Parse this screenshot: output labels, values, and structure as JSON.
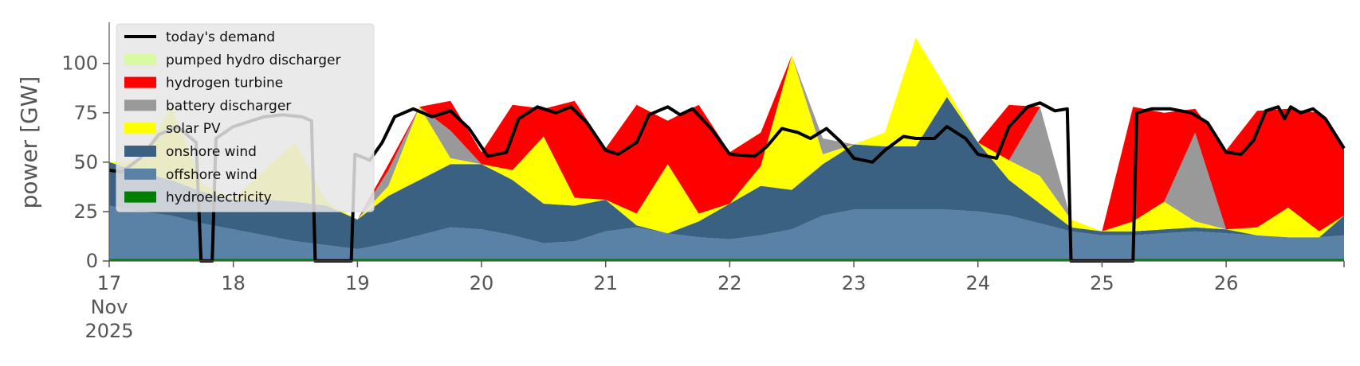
{
  "chart_data": {
    "type": "area",
    "title": "",
    "xlabel": "",
    "ylabel": "power [GW]",
    "ylim": [
      0,
      120
    ],
    "xlim": [
      17,
      26.95
    ],
    "y_ticks": [
      "0",
      "25",
      "50",
      "75",
      "100"
    ],
    "y_tick_values": [
      0,
      25,
      50,
      75,
      100
    ],
    "x_ticks": [
      "17",
      "18",
      "19",
      "20",
      "21",
      "22",
      "23",
      "24",
      "25",
      "26"
    ],
    "x_tick_values": [
      17,
      18,
      19,
      20,
      21,
      22,
      23,
      24,
      25,
      26
    ],
    "x_tick_sublabels": [
      "Nov",
      "2025"
    ],
    "grid": false,
    "legend_position": "top-left",
    "x": [
      17.0,
      17.25,
      17.5,
      17.75,
      18.0,
      18.25,
      18.5,
      18.75,
      19.0,
      19.25,
      19.5,
      19.75,
      20.0,
      20.25,
      20.5,
      20.75,
      21.0,
      21.25,
      21.5,
      21.75,
      22.0,
      22.25,
      22.5,
      22.75,
      23.0,
      23.25,
      23.5,
      23.75,
      24.0,
      24.25,
      24.5,
      24.75,
      25.0,
      25.25,
      25.5,
      25.75,
      26.0,
      26.25,
      26.5,
      26.75,
      26.95
    ],
    "series": [
      {
        "name": "hydroelectricity",
        "color": "#008000",
        "values": [
          1,
          1,
          1,
          1,
          1,
          1,
          1,
          1,
          1,
          1,
          1,
          1,
          1,
          1,
          1,
          1,
          1,
          1,
          1,
          1,
          1,
          1,
          1,
          1,
          1,
          1,
          1,
          1,
          1,
          1,
          1,
          1,
          1,
          1,
          1,
          1,
          1,
          1,
          1,
          1,
          1
        ]
      },
      {
        "name": "offshore wind",
        "color": "#5a81a6",
        "values": [
          27,
          24,
          22,
          18,
          15,
          12,
          9,
          7,
          5,
          8,
          12,
          16,
          15,
          12,
          8,
          9,
          14,
          16,
          13,
          11,
          10,
          12,
          15,
          22,
          25,
          25,
          25,
          25,
          24,
          22,
          18,
          14,
          12,
          12,
          13,
          14,
          13,
          12,
          11,
          11,
          12
        ]
      },
      {
        "name": "onshore wind",
        "color": "#3b6182",
        "values": [
          22,
          20,
          18,
          16,
          15,
          18,
          20,
          20,
          15,
          24,
          28,
          32,
          33,
          28,
          20,
          18,
          16,
          1,
          0,
          8,
          18,
          25,
          20,
          26,
          33,
          32,
          32,
          57,
          35,
          18,
          10,
          2,
          2,
          2,
          2,
          2,
          2,
          0,
          0,
          0,
          10
        ]
      },
      {
        "name": "solar PV",
        "color": "#ffff00",
        "values": [
          0,
          6,
          37,
          4,
          0,
          15,
          30,
          2,
          0,
          5,
          37,
          3,
          0,
          5,
          34,
          4,
          0,
          6,
          35,
          4,
          0,
          10,
          68,
          5,
          0,
          7,
          55,
          4,
          0,
          10,
          14,
          4,
          0,
          5,
          14,
          3,
          0,
          4,
          15,
          3,
          0
        ]
      },
      {
        "name": "battery discharger",
        "color": "#999999",
        "values": [
          0,
          0,
          0,
          0,
          0,
          0,
          0,
          0,
          0,
          8,
          0,
          14,
          0,
          0,
          0,
          0,
          0,
          0,
          0,
          0,
          0,
          0,
          0,
          8,
          0,
          0,
          0,
          0,
          0,
          0,
          35,
          0,
          0,
          0,
          0,
          45,
          0,
          0,
          0,
          0,
          0
        ]
      },
      {
        "name": "hydrogen turbine",
        "color": "#ff0000",
        "values": [
          0,
          0,
          0,
          0,
          0,
          0,
          0,
          0,
          0,
          3,
          0,
          15,
          6,
          33,
          14,
          49,
          26,
          55,
          22,
          55,
          26,
          17,
          0,
          0,
          0,
          0,
          0,
          0,
          0,
          28,
          0,
          0,
          0,
          58,
          45,
          12,
          40,
          59,
          50,
          60,
          35
        ]
      },
      {
        "name": "pumped hydro discharger",
        "color": "#d6fba0",
        "values": [
          0,
          0,
          0,
          0,
          0,
          0,
          0,
          0,
          0,
          0,
          0,
          0,
          0,
          0,
          0,
          0,
          0,
          0,
          0,
          0,
          0,
          0,
          0,
          0,
          0,
          0,
          0,
          0,
          0,
          0,
          0,
          0,
          0,
          0,
          0,
          0,
          0,
          0,
          0,
          0,
          0
        ]
      }
    ],
    "demand": {
      "name": "today's demand",
      "color": "#000000",
      "points": [
        [
          17.0,
          46
        ],
        [
          17.1,
          45
        ],
        [
          17.25,
          52
        ],
        [
          17.4,
          64
        ],
        [
          17.55,
          68
        ],
        [
          17.7,
          60
        ],
        [
          17.74,
          0
        ],
        [
          17.83,
          0
        ],
        [
          17.86,
          62
        ],
        [
          18.0,
          68
        ],
        [
          18.25,
          73
        ],
        [
          18.4,
          74
        ],
        [
          18.55,
          73
        ],
        [
          18.63,
          71
        ],
        [
          18.66,
          0
        ],
        [
          18.95,
          0
        ],
        [
          18.98,
          54
        ],
        [
          19.1,
          51
        ],
        [
          19.2,
          60
        ],
        [
          19.3,
          73
        ],
        [
          19.45,
          77
        ],
        [
          19.6,
          73
        ],
        [
          19.75,
          76
        ],
        [
          19.9,
          67
        ],
        [
          20.05,
          53
        ],
        [
          20.2,
          55
        ],
        [
          20.3,
          72
        ],
        [
          20.45,
          78
        ],
        [
          20.6,
          75
        ],
        [
          20.72,
          78
        ],
        [
          20.85,
          70
        ],
        [
          21.0,
          56
        ],
        [
          21.1,
          54
        ],
        [
          21.25,
          60
        ],
        [
          21.35,
          74
        ],
        [
          21.5,
          78
        ],
        [
          21.6,
          74
        ],
        [
          21.7,
          77
        ],
        [
          21.85,
          67
        ],
        [
          22.0,
          54
        ],
        [
          22.2,
          53
        ],
        [
          22.3,
          58
        ],
        [
          22.42,
          67
        ],
        [
          22.55,
          65
        ],
        [
          22.65,
          62
        ],
        [
          22.78,
          67
        ],
        [
          22.9,
          60
        ],
        [
          23.0,
          52
        ],
        [
          23.15,
          50
        ],
        [
          23.25,
          56
        ],
        [
          23.4,
          63
        ],
        [
          23.5,
          62
        ],
        [
          23.65,
          62
        ],
        [
          23.75,
          68
        ],
        [
          23.9,
          62
        ],
        [
          24.0,
          54
        ],
        [
          24.15,
          52
        ],
        [
          24.25,
          68
        ],
        [
          24.4,
          78
        ],
        [
          24.5,
          80
        ],
        [
          24.62,
          76
        ],
        [
          24.72,
          77
        ],
        [
          24.75,
          0
        ],
        [
          25.25,
          0
        ],
        [
          25.28,
          75
        ],
        [
          25.4,
          77
        ],
        [
          25.55,
          77
        ],
        [
          25.72,
          75
        ],
        [
          25.85,
          70
        ],
        [
          26.0,
          55
        ],
        [
          26.12,
          54
        ],
        [
          26.22,
          61
        ],
        [
          26.32,
          76
        ],
        [
          26.42,
          78
        ],
        [
          26.47,
          72
        ],
        [
          26.52,
          78
        ],
        [
          26.6,
          75
        ],
        [
          26.7,
          77
        ],
        [
          26.8,
          72
        ],
        [
          26.95,
          57
        ]
      ]
    },
    "legend": [
      {
        "label": "today's demand",
        "color": "#000000",
        "kind": "line"
      },
      {
        "label": "pumped hydro discharger",
        "color": "#d6fba0",
        "kind": "patch"
      },
      {
        "label": "hydrogen turbine",
        "color": "#ff0000",
        "kind": "patch"
      },
      {
        "label": "battery discharger",
        "color": "#999999",
        "kind": "patch"
      },
      {
        "label": "solar PV",
        "color": "#ffff00",
        "kind": "patch"
      },
      {
        "label": "onshore wind",
        "color": "#3b6182",
        "kind": "patch"
      },
      {
        "label": "offshore wind",
        "color": "#5a81a6",
        "kind": "patch"
      },
      {
        "label": "hydroelectricity",
        "color": "#008000",
        "kind": "patch"
      }
    ]
  }
}
